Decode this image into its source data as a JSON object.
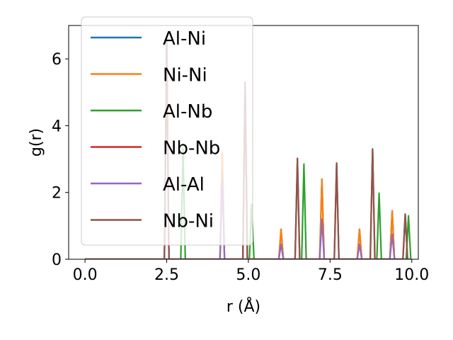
{
  "chart_data": {
    "type": "line",
    "title": "",
    "xlabel": "r (Å)",
    "ylabel": "g(r)",
    "xlim": [
      -0.5,
      10.2
    ],
    "ylim": [
      0,
      7
    ],
    "xticks": [
      {
        "value": 0.0,
        "label": "0.0"
      },
      {
        "value": 2.5,
        "label": "2.5"
      },
      {
        "value": 5.0,
        "label": "5.0"
      },
      {
        "value": 7.5,
        "label": "7.5"
      },
      {
        "value": 10.0,
        "label": "10.0"
      }
    ],
    "yticks": [
      {
        "value": 0,
        "label": "0"
      },
      {
        "value": 2,
        "label": "2"
      },
      {
        "value": 4,
        "label": "4"
      },
      {
        "value": 6,
        "label": "6"
      }
    ],
    "grid": false,
    "legend_position": "top-left",
    "series": [
      {
        "name": "Al-Ni",
        "color": "#1f77b4",
        "peaks": [
          [
            2.5,
            6.6
          ],
          [
            4.2,
            3.2
          ],
          [
            4.9,
            5.3
          ],
          [
            6.0,
            0.9
          ],
          [
            7.25,
            2.4
          ],
          [
            8.4,
            0.9
          ],
          [
            9.4,
            1.45
          ]
        ]
      },
      {
        "name": "Ni-Ni",
        "color": "#ff7f0e",
        "peaks": [
          [
            4.2,
            3.2
          ],
          [
            6.0,
            0.9
          ],
          [
            7.25,
            2.4
          ],
          [
            8.4,
            0.9
          ],
          [
            9.4,
            1.45
          ]
        ]
      },
      {
        "name": "Al-Nb",
        "color": "#2ca02c",
        "peaks": [
          [
            3.0,
            3.3
          ],
          [
            5.1,
            1.65
          ],
          [
            6.7,
            2.85
          ],
          [
            9.0,
            1.98
          ],
          [
            9.9,
            1.3
          ]
        ]
      },
      {
        "name": "Nb-Nb",
        "color": "#d62728",
        "peaks": [
          [
            2.5,
            6.6
          ],
          [
            4.9,
            5.3
          ],
          [
            6.5,
            3.02
          ],
          [
            7.7,
            2.88
          ],
          [
            8.8,
            3.3
          ],
          [
            9.8,
            1.35
          ]
        ]
      },
      {
        "name": "Al-Al",
        "color": "#9467bd",
        "peaks": [
          [
            4.2,
            2.4
          ],
          [
            6.0,
            0.45
          ],
          [
            7.25,
            1.2
          ],
          [
            8.4,
            0.45
          ],
          [
            9.4,
            0.75
          ]
        ]
      },
      {
        "name": "Nb-Ni",
        "color": "#8c564b",
        "peaks": [
          [
            2.5,
            6.6
          ],
          [
            4.9,
            5.3
          ],
          [
            6.5,
            3.02
          ],
          [
            7.7,
            2.88
          ],
          [
            8.8,
            3.3
          ],
          [
            9.8,
            1.35
          ]
        ]
      }
    ]
  }
}
